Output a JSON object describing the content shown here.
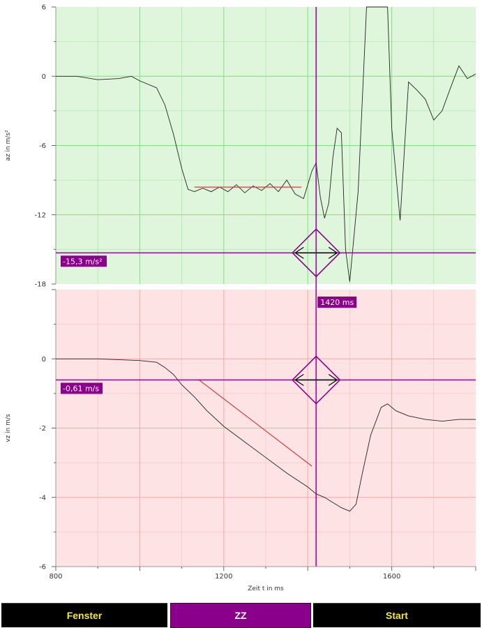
{
  "chart_data": [
    {
      "type": "line",
      "ylabel": "az in m/s²",
      "xlim": [
        800,
        1800
      ],
      "ylim": [
        -18,
        6
      ],
      "yticks": [
        6,
        0,
        -6,
        -12,
        -18
      ],
      "grid": true,
      "background": "#dff6dc",
      "gridcolor": "#7fe07f",
      "series": [
        {
          "x": [
            800,
            850,
            900,
            950,
            980,
            1000,
            1040,
            1060,
            1080,
            1100,
            1115,
            1130,
            1150,
            1170,
            1190,
            1210,
            1230,
            1250,
            1270,
            1290,
            1310,
            1330,
            1350,
            1370,
            1390,
            1410,
            1420,
            1430,
            1440,
            1450,
            1460,
            1470,
            1480,
            1490,
            1500,
            1520,
            1540,
            1560,
            1575,
            1590,
            1600,
            1620,
            1640,
            1660,
            1680,
            1700,
            1720,
            1740,
            1760,
            1780,
            1800
          ],
          "y": [
            0,
            0,
            -0.3,
            -0.2,
            0,
            -0.4,
            -1.0,
            -2.5,
            -5.0,
            -8.0,
            -9.8,
            -10.0,
            -9.7,
            -10.0,
            -9.6,
            -10.0,
            -9.4,
            -10.1,
            -9.5,
            -9.9,
            -9.3,
            -10.0,
            -9.0,
            -10.2,
            -10.6,
            -8.2,
            -7.5,
            -10.5,
            -12.3,
            -11.0,
            -7.0,
            -4.5,
            -4.9,
            -15.0,
            -17.8,
            -10.0,
            6.0,
            6.0,
            6.0,
            6.0,
            -4.5,
            -12.5,
            -0.5,
            -1.2,
            -2.0,
            -3.8,
            -3.0,
            -1.0,
            0.9,
            -0.2,
            0.2
          ]
        },
        {
          "x": [
            1130,
            1385
          ],
          "y": [
            -9.6,
            -9.6
          ]
        }
      ],
      "cursor": {
        "x": 1420,
        "y": -15.3
      },
      "cursor_y_label": "-15,3 m/s²"
    },
    {
      "type": "line",
      "ylabel": "vz in m/s",
      "xlabel": "Zeit t in ms",
      "xlim": [
        800,
        1800
      ],
      "ylim": [
        -6,
        2
      ],
      "yticks": [
        0,
        -2,
        -4,
        -6
      ],
      "xticks": [
        800,
        1200,
        1600
      ],
      "grid": true,
      "background": "#fde3e3",
      "gridcolor": "#f3a9a9",
      "series": [
        {
          "x": [
            800,
            900,
            1000,
            1040,
            1060,
            1080,
            1100,
            1130,
            1160,
            1200,
            1250,
            1300,
            1350,
            1400,
            1420,
            1440,
            1460,
            1480,
            1500,
            1515,
            1530,
            1550,
            1575,
            1590,
            1610,
            1640,
            1680,
            1720,
            1760,
            1800
          ],
          "y": [
            0,
            0,
            -0.05,
            -0.1,
            -0.25,
            -0.45,
            -0.75,
            -1.1,
            -1.5,
            -1.95,
            -2.4,
            -2.85,
            -3.3,
            -3.7,
            -3.9,
            -4.0,
            -4.15,
            -4.3,
            -4.4,
            -4.2,
            -3.3,
            -2.2,
            -1.4,
            -1.3,
            -1.5,
            -1.65,
            -1.75,
            -1.8,
            -1.75,
            -1.75
          ]
        },
        {
          "x": [
            1140,
            1410
          ],
          "y": [
            -0.6,
            -3.1
          ]
        }
      ],
      "cursor": {
        "x": 1420,
        "y": -0.61
      },
      "cursor_y_label": "-0,61 m/s",
      "cursor_x_label": "1420 ms"
    }
  ],
  "buttons": [
    {
      "label": "Fenster",
      "active": false
    },
    {
      "label": "ZZ",
      "active": true
    },
    {
      "label": "Start",
      "active": false
    }
  ],
  "colors": {
    "accent": "#8a008a",
    "button_bg": "#000000",
    "button_text": "#f5e73a",
    "curve": "#222222",
    "fit": "#d04040"
  }
}
